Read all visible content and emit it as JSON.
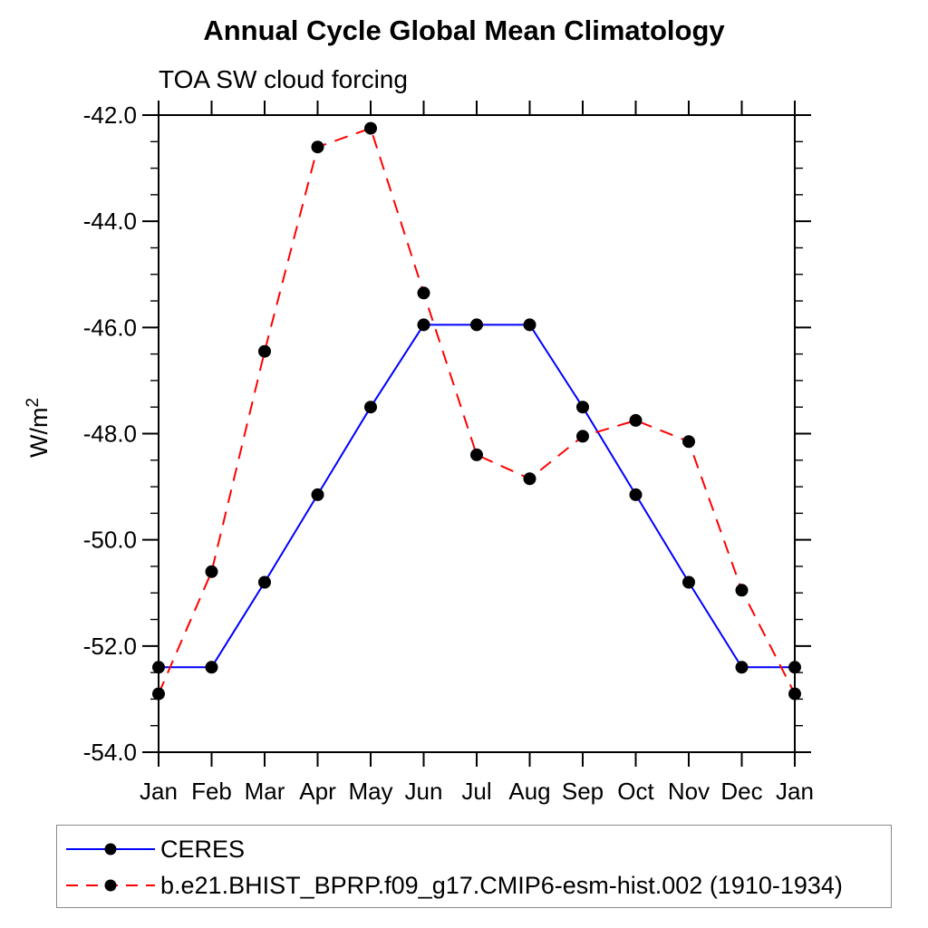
{
  "chart_data": {
    "type": "line",
    "title": "Annual Cycle Global Mean Climatology",
    "subtitle": "TOA SW cloud forcing",
    "ylabel_base": "W/m",
    "ylabel_sup": "2",
    "categories": [
      "Jan",
      "Feb",
      "Mar",
      "Apr",
      "May",
      "Jun",
      "Jul",
      "Aug",
      "Sep",
      "Oct",
      "Nov",
      "Dec",
      "Jan"
    ],
    "ylim": [
      -54.0,
      -42.0
    ],
    "ytick_interval": 2.0,
    "yminor_interval": 0.5,
    "ytick_labels": [
      "-42.0",
      "-44.0",
      "-46.0",
      "-48.0",
      "-50.0",
      "-52.0",
      "-54.0"
    ],
    "grid": false,
    "legend_position": "bottom-left-box",
    "axis_color": "#000000",
    "marker": "filled-circle",
    "marker_color": "#000000",
    "series": [
      {
        "name": "CERES",
        "line_color": "#0000ff",
        "line_style": "solid",
        "values": [
          -52.4,
          -52.4,
          -50.8,
          -49.15,
          -47.5,
          -45.95,
          -45.95,
          -45.95,
          -47.5,
          -49.15,
          -50.8,
          -52.4,
          -52.4
        ]
      },
      {
        "name": "b.e21.BHIST_BPRP.f09_g17.CMIP6-esm-hist.002 (1910-1934)",
        "line_color": "#ff0000",
        "line_style": "dashed",
        "values": [
          -52.9,
          -50.6,
          -46.45,
          -42.6,
          -42.25,
          -45.35,
          -48.4,
          -48.85,
          -48.05,
          -47.75,
          -48.15,
          -50.95,
          -52.9
        ]
      }
    ]
  }
}
